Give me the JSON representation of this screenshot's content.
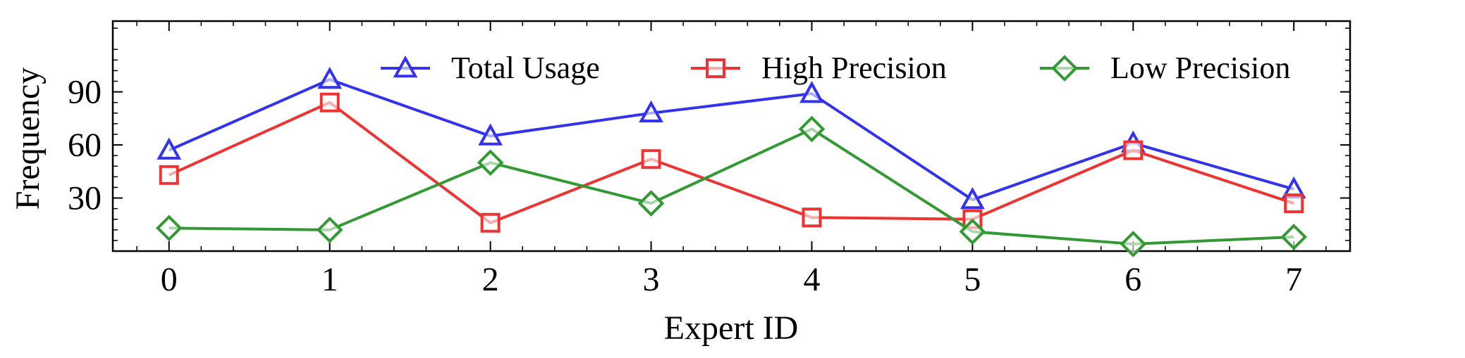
{
  "chart_data": {
    "type": "line",
    "xlabel": "Expert ID",
    "ylabel": "Frequency",
    "x": [
      0,
      1,
      2,
      3,
      4,
      5,
      6,
      7
    ],
    "xlim": [
      -0.35,
      7.35
    ],
    "ylim": [
      0,
      130
    ],
    "x_ticks": [
      "0",
      "1",
      "2",
      "3",
      "4",
      "5",
      "6",
      "7"
    ],
    "y_ticks": [
      "30",
      "60",
      "90"
    ],
    "y_tick_values": [
      30,
      60,
      90
    ],
    "grid": false,
    "legend_position": "top",
    "series": [
      {
        "name": "Total Usage",
        "color": "#3333ee",
        "marker": "triangle",
        "values": [
          57,
          97,
          65,
          78,
          89,
          29,
          61,
          35
        ]
      },
      {
        "name": "High Precision",
        "color": "#ee3333",
        "marker": "square",
        "values": [
          43,
          84,
          16,
          52,
          19,
          18,
          57,
          27
        ]
      },
      {
        "name": "Low Precision",
        "color": "#339933",
        "marker": "diamond",
        "values": [
          13,
          12,
          50,
          27,
          69,
          11,
          4,
          8
        ]
      }
    ]
  }
}
